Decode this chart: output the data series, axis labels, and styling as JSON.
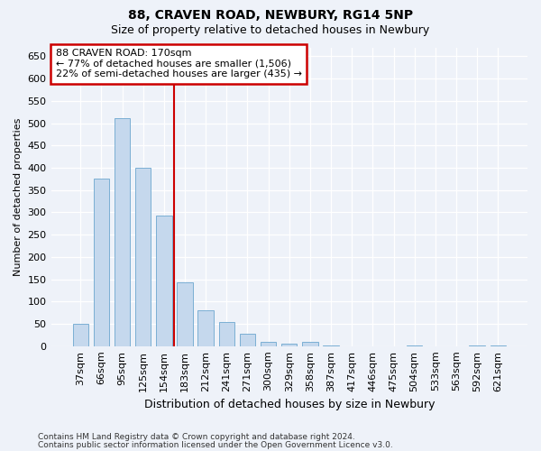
{
  "title": "88, CRAVEN ROAD, NEWBURY, RG14 5NP",
  "subtitle": "Size of property relative to detached houses in Newbury",
  "xlabel": "Distribution of detached houses by size in Newbury",
  "ylabel": "Number of detached properties",
  "categories": [
    "37sqm",
    "66sqm",
    "95sqm",
    "125sqm",
    "154sqm",
    "183sqm",
    "212sqm",
    "241sqm",
    "271sqm",
    "300sqm",
    "329sqm",
    "358sqm",
    "387sqm",
    "417sqm",
    "446sqm",
    "475sqm",
    "504sqm",
    "533sqm",
    "563sqm",
    "592sqm",
    "621sqm"
  ],
  "values": [
    50,
    375,
    512,
    400,
    293,
    143,
    80,
    55,
    28,
    9,
    5,
    10,
    2,
    0,
    0,
    0,
    2,
    0,
    0,
    1,
    1
  ],
  "bar_color": "#c5d8ed",
  "bar_edge_color": "#7bafd4",
  "vline_color": "#cc0000",
  "annotation_text": "88 CRAVEN ROAD: 170sqm\n← 77% of detached houses are smaller (1,506)\n22% of semi-detached houses are larger (435) →",
  "annotation_box_color": "#ffffff",
  "annotation_box_edge_color": "#cc0000",
  "ylim": [
    0,
    670
  ],
  "yticks": [
    0,
    50,
    100,
    150,
    200,
    250,
    300,
    350,
    400,
    450,
    500,
    550,
    600,
    650
  ],
  "footnote1": "Contains HM Land Registry data © Crown copyright and database right 2024.",
  "footnote2": "Contains public sector information licensed under the Open Government Licence v3.0.",
  "background_color": "#eef2f9",
  "grid_color": "#ffffff",
  "title_fontsize": 10,
  "subtitle_fontsize": 9,
  "axis_label_fontsize": 9,
  "ylabel_fontsize": 8,
  "tick_fontsize": 8,
  "footnote_fontsize": 6.5,
  "bar_width": 0.75,
  "vline_x_index": 5
}
